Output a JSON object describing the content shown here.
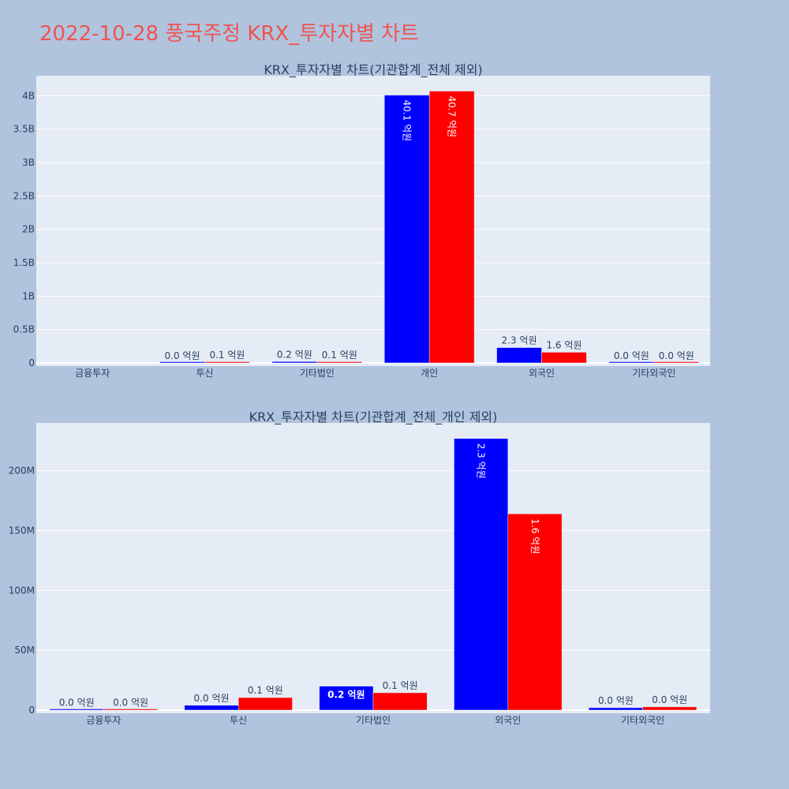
{
  "page_title": "2022-10-28 풍국주정 KRX_투자자별 차트",
  "colors": {
    "buy": "#0000ff",
    "sell": "#ff0000",
    "title": "#ef5350",
    "plot_bg": "#e5ecf6",
    "page_bg": "#b0c4de"
  },
  "chart_data": [
    {
      "type": "bar",
      "title": "KRX_투자자별 차트(기관합계_전체 제외)",
      "categories": [
        "금융투자",
        "투신",
        "기타법인",
        "개인",
        "외국인",
        "기타외국인"
      ],
      "ylim": [
        0,
        4300000000
      ],
      "yticks": [
        0,
        500000000,
        1000000000,
        1500000000,
        2000000000,
        2500000000,
        3000000000,
        3500000000,
        4000000000
      ],
      "ytick_labels": [
        "0",
        "0.5B",
        "1B",
        "1.5B",
        "2B",
        "2.5B",
        "3B",
        "3.5B",
        "4B"
      ],
      "series": [
        {
          "color": "#0000ff",
          "values": [
            0,
            2000000,
            20000000,
            4010000000,
            230000000,
            1000000
          ],
          "labels": [
            "",
            "0.0 억원",
            "0.2 억원",
            "40.1 억원",
            "2.3 억원",
            "0.0 억원"
          ]
        },
        {
          "color": "#ff0000",
          "values": [
            0,
            10000000,
            10000000,
            4070000000,
            160000000,
            1000000
          ],
          "labels": [
            "",
            "0.1 억원",
            "0.1 억원",
            "40.7 억원",
            "1.6 억원",
            "0.0 억원"
          ]
        }
      ],
      "grid": true
    },
    {
      "type": "bar",
      "title": "KRX_투자자별 차트(기관합계_전체_개인 제외)",
      "categories": [
        "금융투자",
        "투신",
        "기타법인",
        "외국인",
        "기타외국인"
      ],
      "ylim": [
        0,
        240000000
      ],
      "yticks": [
        0,
        50000000,
        100000000,
        150000000,
        200000000
      ],
      "ytick_labels": [
        "0",
        "50M",
        "100M",
        "150M",
        "200M"
      ],
      "series": [
        {
          "color": "#0000ff",
          "values": [
            300000,
            4000000,
            20000000,
            227000000,
            2000000
          ],
          "labels": [
            "0.0 억원",
            "0.0 억원",
            "0.2 억원",
            "2.3 억원",
            "0.0 억원"
          ]
        },
        {
          "color": "#ff0000",
          "values": [
            300000,
            10500000,
            14500000,
            164000000,
            2700000
          ],
          "labels": [
            "0.0 억원",
            "0.1 억원",
            "0.1 억원",
            "1.6 억원",
            "0.0 억원"
          ]
        }
      ],
      "grid": true
    }
  ]
}
